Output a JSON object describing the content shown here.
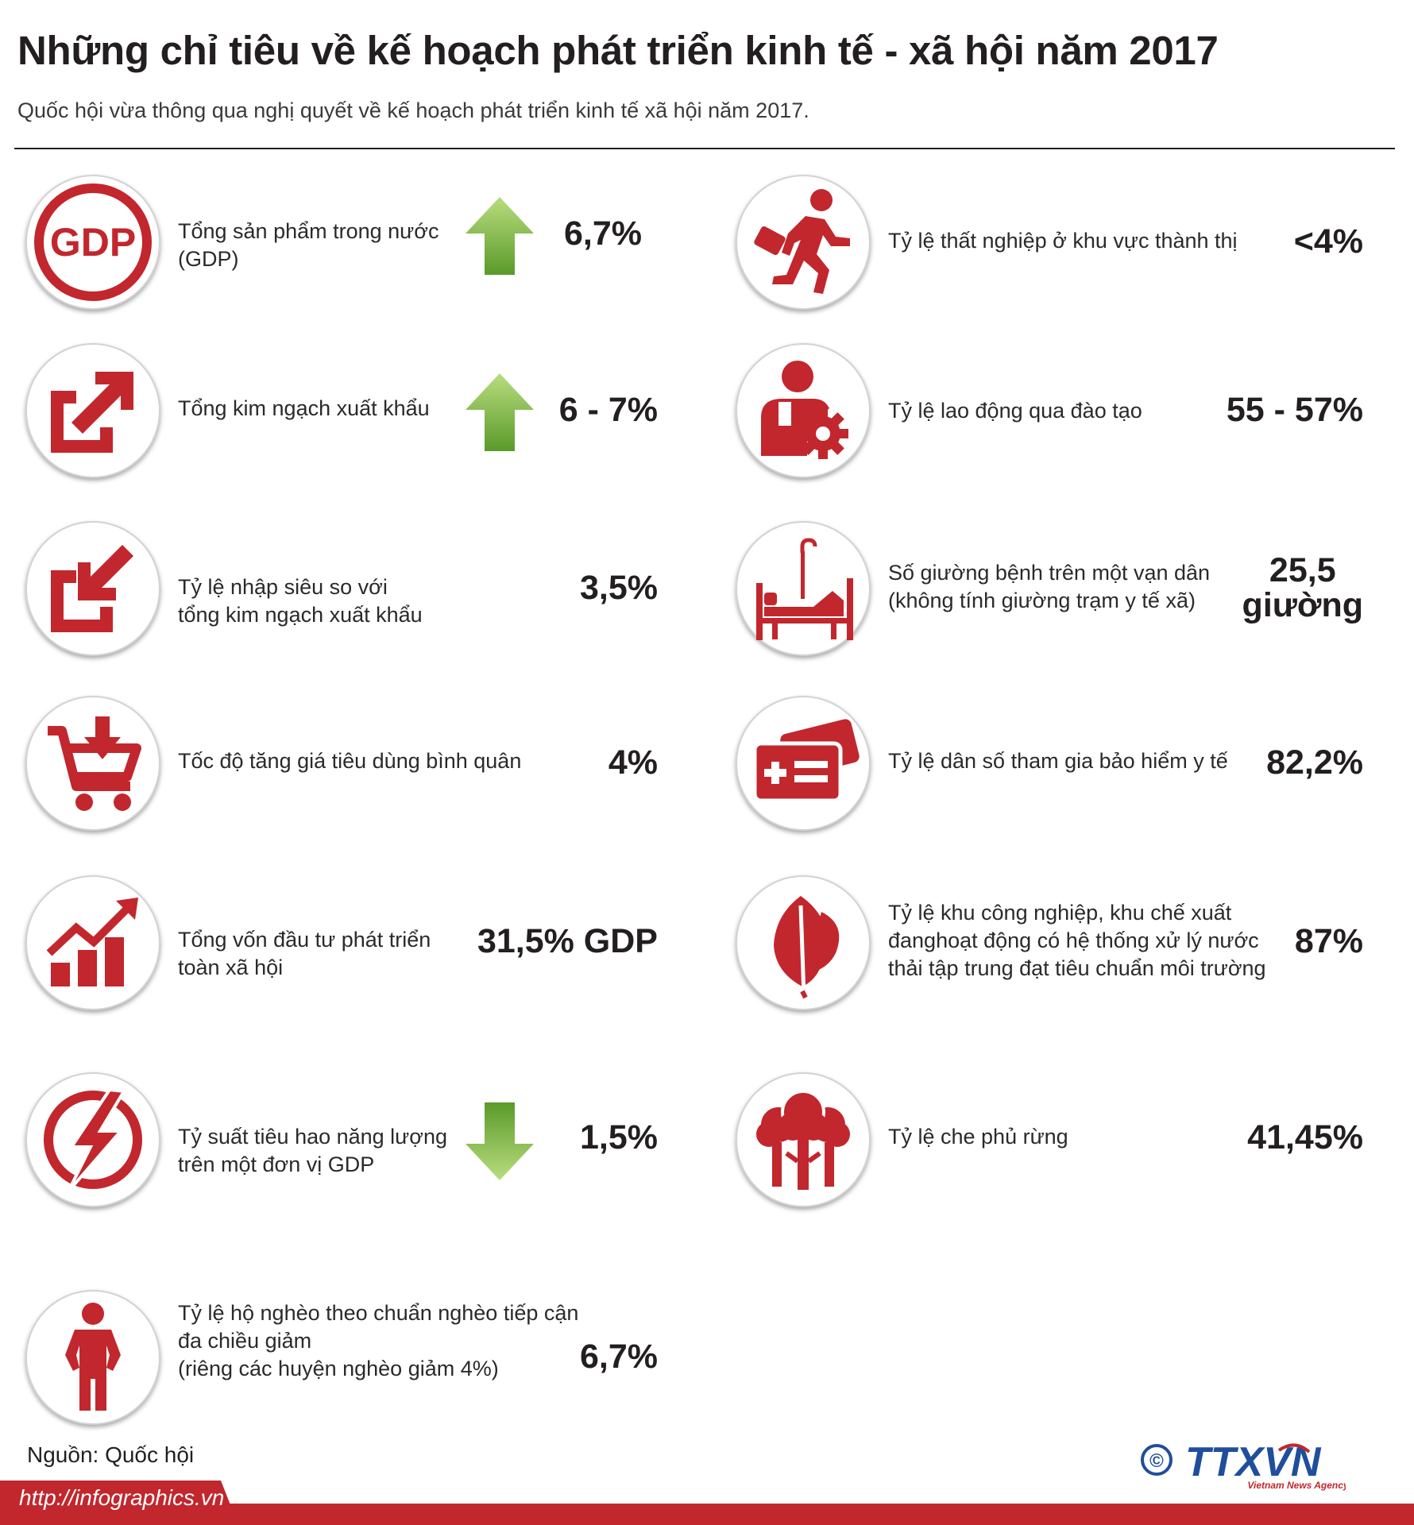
{
  "header": {
    "title": "Những chỉ tiêu về kế hoạch phát triển kinh tế - xã hội năm 2017",
    "subtitle": "Quốc hội vừa thông qua nghị quyết về kế hoạch phát triển kinh tế xã hội năm 2017."
  },
  "left_items": [
    {
      "icon": "gdp-icon",
      "label": "Tổng sản phẩm trong nước\n (GDP)",
      "value": "6,7%",
      "trend": "up"
    },
    {
      "icon": "export-icon",
      "label": "Tổng kim ngạch xuất khẩu",
      "value": "6 - 7%",
      "trend": "up"
    },
    {
      "icon": "import-icon",
      "label": "Tỷ lệ nhập siêu so với\ntổng kim ngạch xuất khẩu",
      "value": "3,5%"
    },
    {
      "icon": "shopping-cart-icon",
      "label": "Tốc độ tăng giá tiêu dùng bình quân",
      "value": "4%"
    },
    {
      "icon": "growth-chart-icon",
      "label": "Tổng vốn đầu tư phát triển\ntoàn xã hội",
      "value": "31,5% GDP"
    },
    {
      "icon": "energy-icon",
      "label": "Tỷ suất tiêu hao năng lượng\ntrên một đơn vị GDP",
      "value": "1,5%",
      "trend": "down"
    },
    {
      "icon": "poor-person-icon",
      "label": "Tỷ lệ hộ nghèo theo chuẩn nghèo tiếp cận\nđa chiều giảm\n(riêng các huyện nghèo giảm 4%)",
      "value": "6,7%"
    }
  ],
  "right_items": [
    {
      "icon": "running-man-icon",
      "label": "Tỷ lệ thất nghiệp ở khu vực thành thị",
      "value": "<4%"
    },
    {
      "icon": "worker-gear-icon",
      "label": "Tỷ lệ lao động qua đào tạo",
      "value": "55 - 57%"
    },
    {
      "icon": "hospital-bed-icon",
      "label": "Số giường bệnh trên một vạn dân\n(không tính giường trạm y tế xã)",
      "value": "25,5\ngiường"
    },
    {
      "icon": "health-card-icon",
      "label": "Tỷ lệ dân số tham gia bảo hiểm y tế",
      "value": "82,2%"
    },
    {
      "icon": "leaf-icon",
      "label": "Tỷ lệ khu công nghiệp, khu chế xuất\nđanghoạt động có hệ thống xử lý nước\nthải tập trung đạt tiêu chuẩn môi trường",
      "value": "87%"
    },
    {
      "icon": "forest-icon",
      "label": "Tỷ lệ che phủ rừng",
      "value": "41,45%"
    }
  ],
  "footer": {
    "source": "Nguồn: Quốc hội",
    "url": "http://infographics.vn",
    "copyright": "©",
    "logo_text": "TTXVN",
    "logo_sub": "Vietnam News Agency"
  },
  "colors": {
    "icon_red": "#c1272d",
    "arrow_green_light": "#a9d46f",
    "arrow_green_dark": "#5e9e2c"
  }
}
